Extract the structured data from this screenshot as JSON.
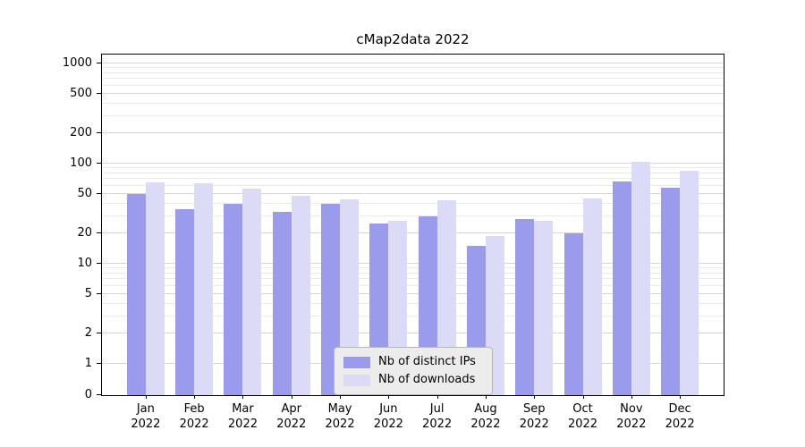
{
  "chart_data": {
    "type": "bar",
    "title": "cMap2data 2022",
    "categories": [
      "Jan",
      "Feb",
      "Mar",
      "Apr",
      "May",
      "Jun",
      "Jul",
      "Aug",
      "Sep",
      "Oct",
      "Nov",
      "Dec"
    ],
    "xtick_year": "2022",
    "series": [
      {
        "name": "Nb of distinct IPs",
        "color": "#9b9bee",
        "values": [
          50,
          35,
          40,
          33,
          40,
          25,
          30,
          15,
          28,
          20,
          66,
          57
        ]
      },
      {
        "name": "Nb of downloads",
        "color": "#dbdbf8",
        "values": [
          65,
          63,
          56,
          48,
          44,
          27,
          43,
          19,
          27,
          45,
          105,
          85
        ]
      }
    ],
    "yscale": "symlog",
    "yticks": [
      0,
      1,
      2,
      5,
      10,
      20,
      50,
      100,
      200,
      500,
      1000
    ],
    "ylim": [
      0,
      1300
    ],
    "grid": true,
    "legend_position": "lower center"
  }
}
